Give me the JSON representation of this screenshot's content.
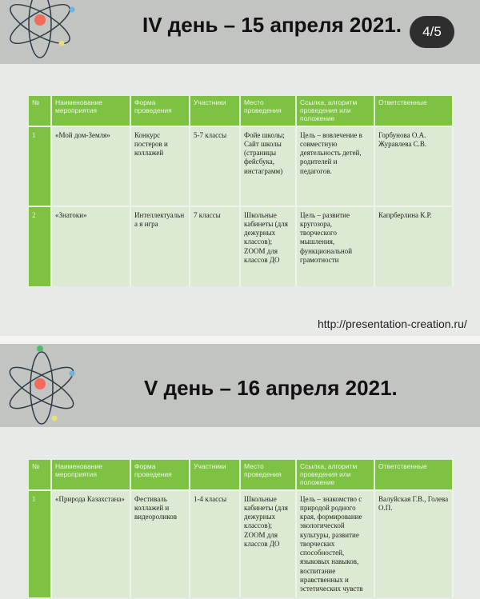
{
  "slides": [
    {
      "title": "IV день – 15 апреля 2021.",
      "counter": "4/5",
      "url": "http://presentation-creation.ru/",
      "headers": [
        "№",
        "Наименование мероприятия",
        "Форма проведения",
        "Участники",
        "Место проведения",
        "Ссылка, алгоритм проведения или положение",
        "Ответственные"
      ],
      "rows": [
        [
          "1",
          "«Мой дом-Земля»",
          "Конкурс постеров и коллажей",
          "5-7 классы",
          "Фойе школы; Сайт школы (страницы фейсбука, инстаграмм)",
          "Цель – вовлечение в совместную деятельность детей, родителей и педагогов.",
          "Горбунова О.А. Журавлева С.В."
        ],
        [
          "2",
          "«Знатоки»",
          "Интеллектуальна я игра",
          "7 классы",
          "Школьные кабинеты (для дежурных классов); ZOOM для классов ДО",
          "Цель – развитие кругозора, творческого мышления, функциональной грамотности",
          "Капрберлина К.Р."
        ]
      ]
    },
    {
      "title": "V день – 16 апреля 2021.",
      "headers": [
        "№",
        "Наименование мероприятия",
        "Форма проведения",
        "Участники",
        "Место проведения",
        "Ссылка, алгоритм проведения или положение",
        "Ответственные"
      ],
      "rows": [
        [
          "1",
          "«Природа Казахстана»",
          "Фестиваль коллажей и видеороликов",
          "1-4 классы",
          "Школьные кабинеты (для дежурных классов); ZOOM для классов ДО",
          "Цель – знакомство с природой родного края, формирование экологической культуры, развитие творческих способностей, языковых навыков, воспитание нравственных и эстетических чувств",
          "Валуйская Г.В., Голева О.П."
        ]
      ]
    }
  ],
  "colors": {
    "header_green": "#7dc242",
    "row_green": "#dcead3",
    "band_gray": "#c2c4c1"
  }
}
